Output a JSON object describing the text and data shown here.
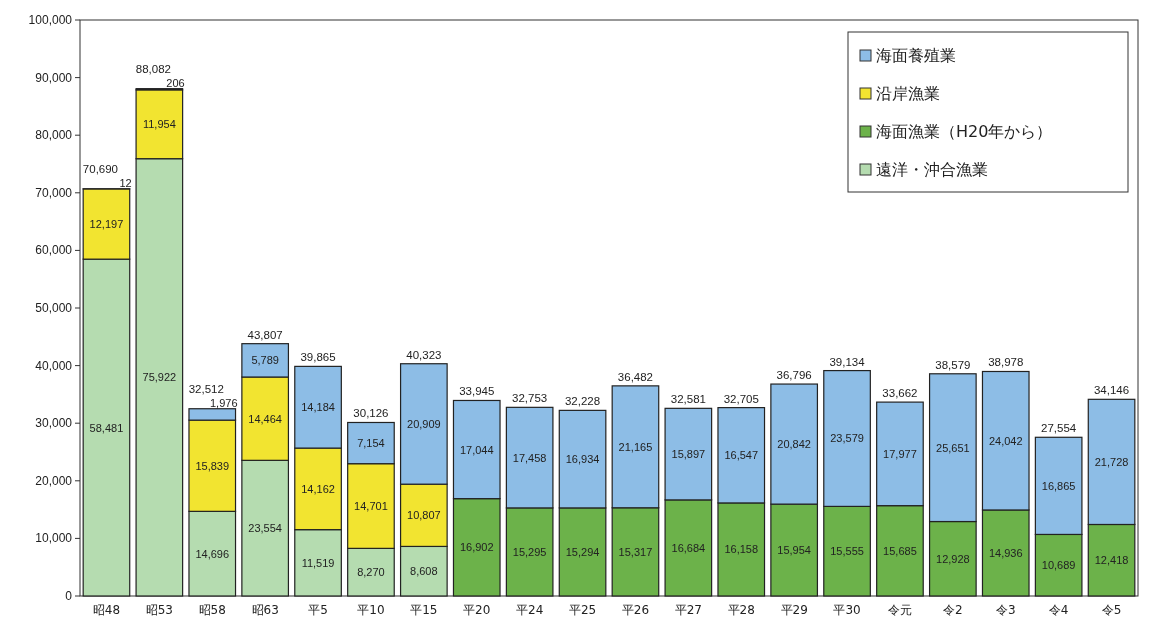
{
  "chart_data": {
    "type": "bar",
    "stacked": true,
    "categories": [
      "昭48",
      "昭53",
      "昭58",
      "昭63",
      "平5",
      "平10",
      "平15",
      "平20",
      "平24",
      "平25",
      "平26",
      "平27",
      "平28",
      "平29",
      "平30",
      "令元",
      "令2",
      "令3",
      "令4",
      "令5"
    ],
    "series": [
      {
        "name": "遠洋・沖合漁業",
        "color": "#b5dcb0",
        "values": [
          58481,
          75922,
          14696,
          23554,
          11519,
          8270,
          8608,
          null,
          null,
          null,
          null,
          null,
          null,
          null,
          null,
          null,
          null,
          null,
          null,
          null
        ],
        "value_labels": [
          "58,481",
          "75,922",
          "14,696",
          "23,554",
          "11,519",
          "8,270",
          "8,608",
          null,
          null,
          null,
          null,
          null,
          null,
          null,
          null,
          null,
          null,
          null,
          null,
          null
        ]
      },
      {
        "name": "海面漁業（H20年から）",
        "color": "#6cb24a",
        "values": [
          null,
          null,
          null,
          null,
          null,
          null,
          null,
          16902,
          15295,
          15294,
          15317,
          16684,
          16158,
          15954,
          15555,
          15685,
          12928,
          14936,
          10689,
          12418
        ],
        "value_labels": [
          null,
          null,
          null,
          null,
          null,
          null,
          null,
          "16,902",
          "15,295",
          "15,294",
          "15,317",
          "16,684",
          "16,158",
          "15,954",
          "15,555",
          "15,685",
          "12,928",
          "14,936",
          "10,689",
          "12,418"
        ]
      },
      {
        "name": "沿岸漁業",
        "color": "#f2e430",
        "values": [
          12197,
          11954,
          15839,
          14464,
          14162,
          14701,
          10807,
          null,
          null,
          null,
          null,
          null,
          null,
          null,
          null,
          null,
          null,
          null,
          null,
          null
        ],
        "value_labels": [
          "12,197",
          "11,954",
          "15,839",
          "14,464",
          "14,162",
          "14,701",
          "10,807",
          null,
          null,
          null,
          null,
          null,
          null,
          null,
          null,
          null,
          null,
          null,
          null,
          null
        ]
      },
      {
        "name": "海面養殖業",
        "color": "#8dbde6",
        "values": [
          12,
          206,
          1976,
          5789,
          14184,
          7154,
          20909,
          17044,
          17458,
          16934,
          21165,
          15897,
          16547,
          20842,
          23579,
          17977,
          25651,
          24042,
          16865,
          21728
        ],
        "value_labels": [
          "12",
          "206",
          "1,976",
          "5,789",
          "14,184",
          "7,154",
          "20,909",
          "17,044",
          "17,458",
          "16,934",
          "21,165",
          "15,897",
          "16,547",
          "20,842",
          "23,579",
          "17,977",
          "25,651",
          "24,042",
          "16,865",
          "21,728"
        ]
      }
    ],
    "totals": [
      "70,690",
      "88,082",
      "32,512",
      "43,807",
      "39,865",
      "30,126",
      "40,323",
      "33,945",
      "32,753",
      "32,228",
      "36,482",
      "32,581",
      "32,705",
      "36,796",
      "39,134",
      "33,662",
      "38,579",
      "38,978",
      "27,554",
      "34,146"
    ],
    "ylim": [
      0,
      100000
    ],
    "yticks": [
      {
        "value": 0,
        "label": "0"
      },
      {
        "value": 10000,
        "label": "10,000"
      },
      {
        "value": 20000,
        "label": "20,000"
      },
      {
        "value": 30000,
        "label": "30,000"
      },
      {
        "value": 40000,
        "label": "40,000"
      },
      {
        "value": 50000,
        "label": "50,000"
      },
      {
        "value": 60000,
        "label": "60,000"
      },
      {
        "value": 70000,
        "label": "70,000"
      },
      {
        "value": 80000,
        "label": "80,000"
      },
      {
        "value": 90000,
        "label": "90,000"
      },
      {
        "value": 100000,
        "label": "100,000"
      }
    ],
    "legend": "top right"
  }
}
